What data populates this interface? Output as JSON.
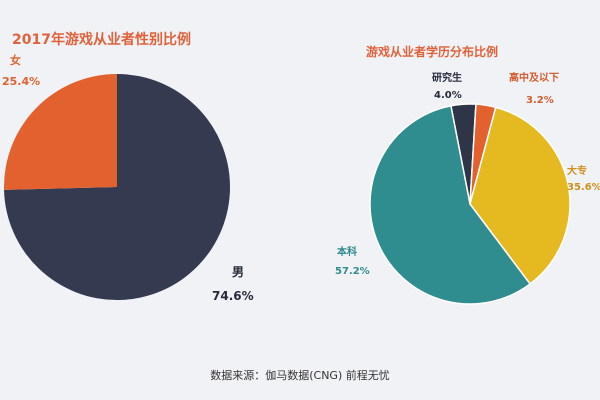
{
  "chart_data": [
    {
      "type": "pie",
      "title": "2017年游戏从业者性别比例",
      "title_color": "#e1623a",
      "categories": [
        "男",
        "女"
      ],
      "values": [
        74.6,
        25.4
      ],
      "value_labels": [
        "74.6%",
        "25.4%"
      ],
      "colors": [
        "#343a4f",
        "#e2612f"
      ],
      "label_colors": [
        "#262a3a",
        "#e2612f"
      ]
    },
    {
      "type": "pie",
      "title": "游戏从业者学历分布比例",
      "title_color": "#e1623a",
      "categories": [
        "研究生",
        "高中及以下",
        "大专",
        "本科"
      ],
      "values": [
        4.0,
        3.2,
        35.6,
        57.2
      ],
      "value_labels": [
        "4.0%",
        "3.2%",
        "35.6%",
        "57.2%"
      ],
      "colors": [
        "#2f3548",
        "#e2612f",
        "#e5b920",
        "#2f8c8f"
      ],
      "label_colors": [
        "#262a3a",
        "#d55b2d",
        "#d1901d",
        "#2f8c8f"
      ]
    }
  ],
  "source": "数据来源：伽马数据(CNG) 前程无忧"
}
